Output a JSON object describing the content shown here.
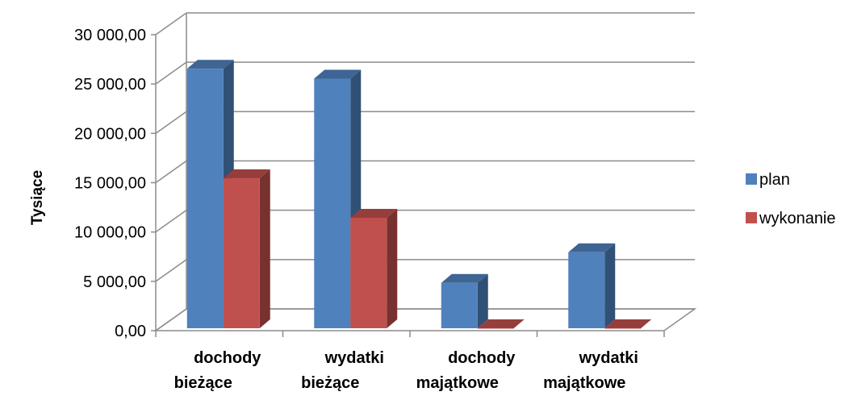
{
  "chart_data": {
    "type": "bar",
    "style": "3d-clustered-column",
    "ylabel": "Tysiące",
    "ylim": [
      0,
      30000
    ],
    "yticks": [
      "0,00",
      "5 000,00",
      "10 000,00",
      "15 000,00",
      "20 000,00",
      "25 000,00",
      "30 000,00"
    ],
    "categories": [
      [
        "dochody",
        "bieżące"
      ],
      [
        "wydatki",
        "bieżące"
      ],
      [
        "dochody",
        "majątkowe"
      ],
      [
        "wydatki",
        "majątkowe"
      ]
    ],
    "series": [
      {
        "name": "plan",
        "color": "#4f81bd",
        "values": [
          26300,
          25300,
          4600,
          7700
        ]
      },
      {
        "name": "wykonanie",
        "color": "#c0504d",
        "values": [
          15200,
          11200,
          0,
          0
        ]
      }
    ],
    "grid": true,
    "legend": "right"
  }
}
